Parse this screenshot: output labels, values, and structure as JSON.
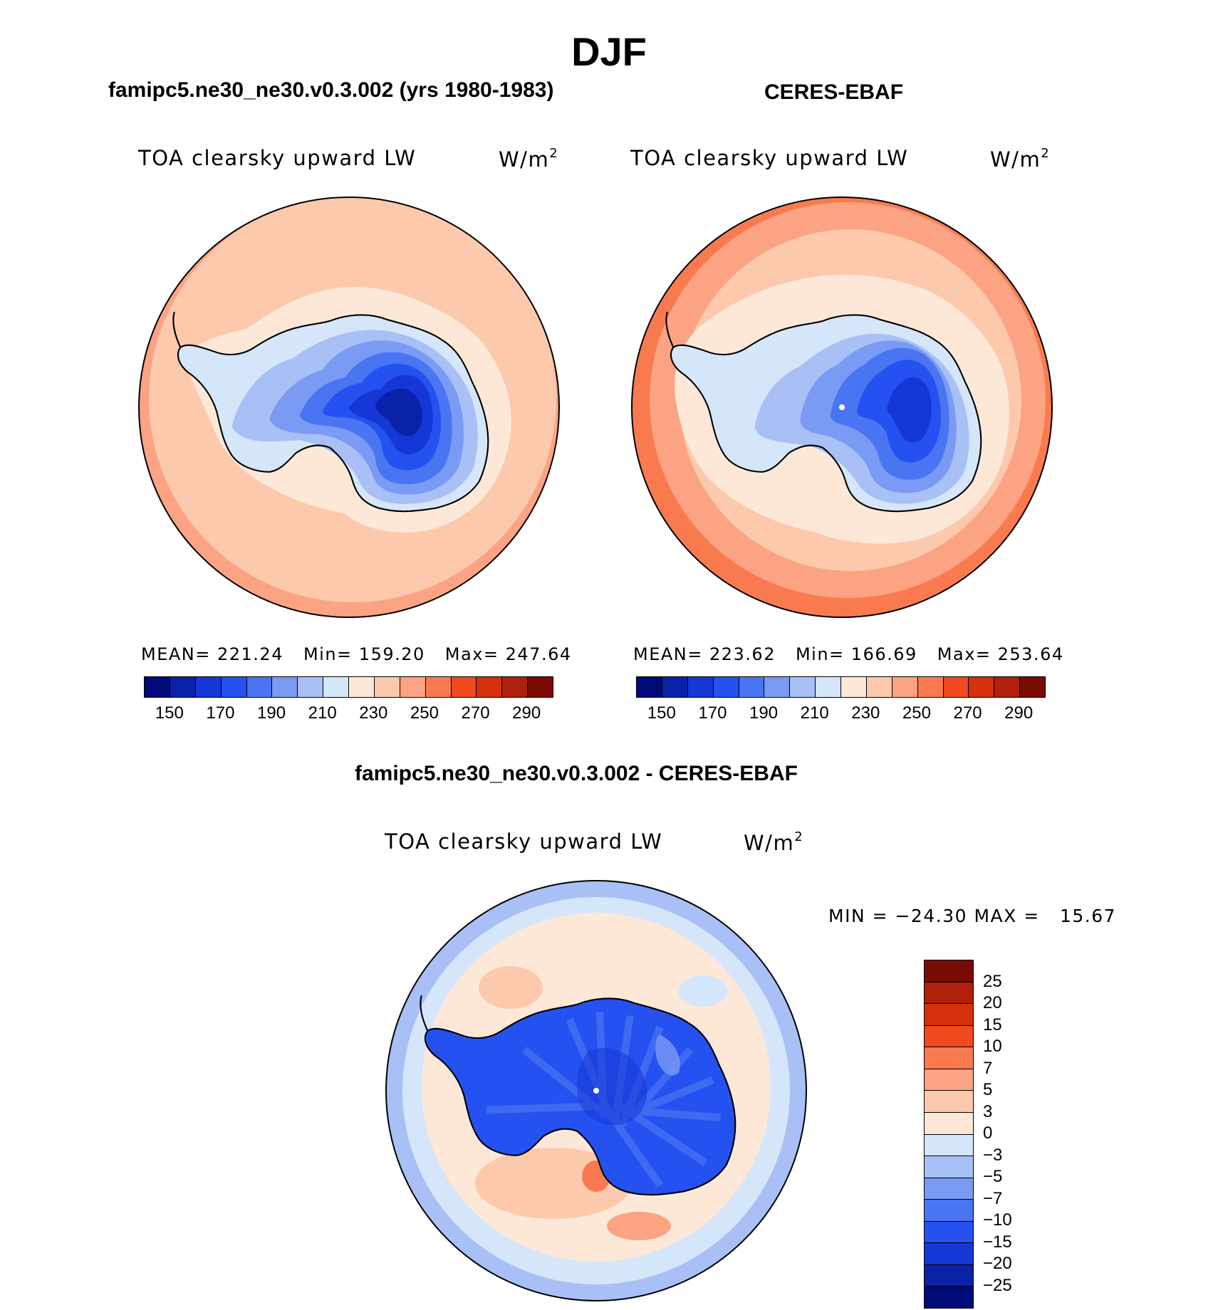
{
  "title": "DJF",
  "left_panel": {
    "subtitle": "famipc5.ne30_ne30.v0.3.002 (yrs 1980-1983)",
    "variable": "TOA clearsky upward LW",
    "units_base": "W/m",
    "units_exp": "2",
    "mean_label": "MEAN= 221.24",
    "min_label": "Min= 159.20",
    "max_label": "Max= 247.64"
  },
  "right_panel": {
    "subtitle": "CERES-EBAF",
    "variable": "TOA clearsky upward LW",
    "units_base": "W/m",
    "units_exp": "2",
    "mean_label": "MEAN= 223.62",
    "min_label": "Min= 166.69",
    "max_label": "Max= 253.64"
  },
  "diff_panel": {
    "subtitle": "famipc5.ne30_ne30.v0.3.002 - CERES-EBAF",
    "variable": "TOA clearsky upward LW",
    "units_base": "W/m",
    "units_exp": "2",
    "minmax_label": "MIN = −24.30 MAX =   15.67"
  },
  "abs_colorbar": {
    "colors": [
      "#000a7a",
      "#0a22a8",
      "#1537d6",
      "#2451f0",
      "#4a75f2",
      "#7a9af4",
      "#a8c0f6",
      "#d6e6fa",
      "#fde8d8",
      "#fcc9ad",
      "#fba382",
      "#fa7a50",
      "#f04a1e",
      "#d6300c",
      "#b0200a",
      "#7a0a04"
    ],
    "tick_labels": [
      "150",
      "170",
      "190",
      "210",
      "230",
      "250",
      "270",
      "290"
    ]
  },
  "diff_colorbar": {
    "colors": [
      "#7a0a04",
      "#b0200a",
      "#d6300c",
      "#f04a1e",
      "#fa7a50",
      "#fba382",
      "#fcc9ad",
      "#fde8d8",
      "#d6e6fa",
      "#a8c0f6",
      "#7a9af4",
      "#4a75f2",
      "#2451f0",
      "#1537d6",
      "#0a22a8",
      "#000a7a"
    ],
    "tick_labels": [
      "25",
      "20",
      "15",
      "10",
      "7",
      "5",
      "3",
      "0",
      "−3",
      "−5",
      "−7",
      "−10",
      "−15",
      "−20",
      "−25"
    ]
  }
}
